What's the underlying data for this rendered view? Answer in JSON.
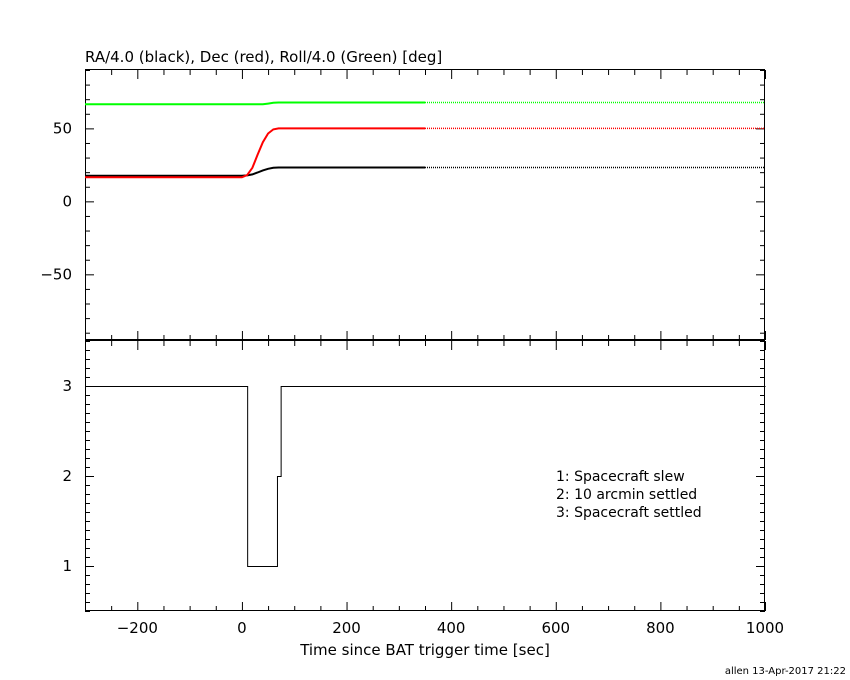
{
  "top_panel": {
    "title": "RA/4.0 (black), Dec (red), Roll/4.0 (Green) [deg]"
  },
  "footer": {
    "credit": "allen 13-Apr-2017 21:22"
  },
  "colors": {
    "ra": "#000000",
    "dec": "#ff0000",
    "roll": "#00ff00",
    "axes": "#000000"
  },
  "chart_data": [
    {
      "type": "line",
      "title": "RA/4.0 (black), Dec (red), Roll/4.0 (Green) [deg]",
      "xlim": [
        -300,
        1000
      ],
      "ylim": [
        -95,
        90
      ],
      "y_ticks": [
        -50,
        0,
        50
      ],
      "y_tick_labels": [
        "−50",
        "0",
        "50"
      ],
      "series": [
        {
          "key": "ra",
          "x": [
            -300,
            0,
            10,
            20,
            30,
            40,
            50,
            60,
            70,
            350
          ],
          "y": [
            17.5,
            17.5,
            17.8,
            18.5,
            19.8,
            21.2,
            22.3,
            23.0,
            23.2,
            23.2
          ],
          "dotted_to": 1000
        },
        {
          "key": "dec",
          "x": [
            -300,
            0,
            10,
            20,
            30,
            40,
            50,
            60,
            70,
            350
          ],
          "y": [
            16.5,
            16.5,
            18.0,
            23.0,
            32.0,
            40.5,
            46.5,
            49.3,
            50.0,
            50.0
          ],
          "dotted_to": 1000
        },
        {
          "key": "roll",
          "x": [
            -300,
            40,
            50,
            60,
            70,
            350
          ],
          "y": [
            66.5,
            66.5,
            67.0,
            67.5,
            67.7,
            67.7
          ],
          "dotted_to": 1000
        }
      ]
    },
    {
      "type": "line",
      "xlabel": "Time since BAT trigger time [sec]",
      "xlim": [
        -300,
        1000
      ],
      "ylim": [
        0.5,
        3.5
      ],
      "x_ticks": [
        -200,
        0,
        200,
        400,
        600,
        800,
        1000
      ],
      "x_tick_labels": [
        "−200",
        "0",
        "200",
        "400",
        "600",
        "800",
        "1000"
      ],
      "y_ticks": [
        1,
        2,
        3
      ],
      "y_tick_labels": [
        "1",
        "2",
        "3"
      ],
      "step": {
        "x": [
          -300,
          10,
          10,
          67,
          67,
          74,
          74,
          1000
        ],
        "y": [
          3,
          3,
          1,
          1,
          2,
          2,
          3,
          3
        ]
      },
      "annotations": [
        "1: Spacecraft slew",
        "2: 10 arcmin settled",
        "3: Spacecraft settled"
      ]
    }
  ]
}
